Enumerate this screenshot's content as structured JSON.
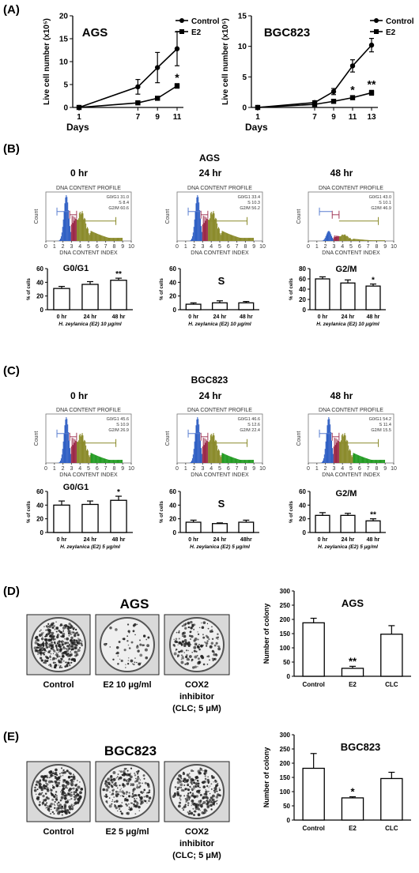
{
  "panels": {
    "A": "(A)",
    "B": "(B)",
    "C": "(C)",
    "D": "(D)",
    "E": "(E)"
  },
  "colors": {
    "g0g1": "#2f5fc4",
    "s": "#9b2948",
    "g2m_olive": "#8a8a2a",
    "g2m_green": "#239b23",
    "bracket_blue": "#5a7fd0",
    "bracket_red": "#a23b5a",
    "bracket_olive": "#8a8a2a"
  },
  "growth": {
    "ylabel": "Live cell number (x10⁵)",
    "xlabel": "Days",
    "legend": [
      "Control",
      "E2"
    ]
  },
  "flow": {
    "section_titles": {
      "B": "AGS",
      "C": "BGC823"
    },
    "times": [
      "0 hr",
      "24 hr",
      "48 hr"
    ],
    "hist_title": "DNA CONTENT PROFILE",
    "hist_xlabel": "DNA CONTENT INDEX",
    "hist_ylabel": "Count",
    "hist_ticks": [
      "0",
      "1",
      "2",
      "3",
      "4",
      "5",
      "6",
      "7",
      "8",
      "9",
      "10"
    ],
    "bar_ylabel": "% of cells",
    "bar_xticks": [
      "0 hr",
      "24 hr",
      "48 hr"
    ],
    "bar_xticks_alt": [
      "0 hr",
      "24 hr",
      "48hr"
    ],
    "B_stats": [
      [
        "G0/G1 31.0",
        "S 8.4",
        "G2/M 60.6"
      ],
      [
        "G0/G1 33.4",
        "S 10.3",
        "G2/M 56.2"
      ],
      [
        "G0/G1 43.0",
        "S 10.1",
        "G2/M 46.9"
      ]
    ],
    "C_stats": [
      [
        "G0/G1 45.6",
        "S 10.9",
        "G2/M 26.9"
      ],
      [
        "G0/G1 46.6",
        "S 12.6",
        "G2/M 22.4"
      ],
      [
        "G0/G1 54.2",
        "S 11.4",
        "G2/M 15.5"
      ]
    ],
    "B_treat": "H. zeylanica (E2) 10 μg/ml",
    "C_treat": "H. zeylanica (E2) 5 μg/ml"
  },
  "colony": {
    "D_title": "AGS",
    "E_title": "BGC823",
    "D_labels": [
      "Control",
      "E2 10 μg/ml",
      "COX2",
      "inhibitor",
      "(CLC; 5 μM)"
    ],
    "E_labels": [
      "Control",
      "E2 5 μg/ml",
      "COX2",
      "inhibitor",
      "(CLC; 5 μM)"
    ],
    "ylabel": "Number of colony"
  },
  "chart_data": [
    {
      "id": "A-AGS",
      "type": "line",
      "title": "AGS",
      "xlabel": "Days",
      "ylabel": "Live cell number (x10⁵)",
      "x": [
        1,
        7,
        9,
        11
      ],
      "ylim": [
        0,
        20
      ],
      "yticks": [
        0,
        5,
        10,
        15,
        20
      ],
      "series": [
        {
          "name": "Control",
          "marker": "circle",
          "values": [
            0,
            4.5,
            8.7,
            12.8
          ],
          "err": [
            0,
            1.6,
            3.3,
            3.7
          ]
        },
        {
          "name": "E2",
          "marker": "square",
          "values": [
            0,
            1.0,
            2.0,
            4.7
          ],
          "err": [
            0,
            0.2,
            0.3,
            0.5
          ]
        }
      ],
      "annotations": [
        {
          "x": 11,
          "series": "E2",
          "text": "*"
        }
      ],
      "legend": "top-right"
    },
    {
      "id": "A-BGC823",
      "type": "line",
      "title": "BGC823",
      "xlabel": "Days",
      "ylabel": "Live cell number (x10⁵)",
      "x": [
        1,
        7,
        9,
        11,
        13
      ],
      "ylim": [
        0,
        15
      ],
      "yticks": [
        0,
        5,
        10,
        15
      ],
      "series": [
        {
          "name": "Control",
          "marker": "circle",
          "values": [
            0,
            0.8,
            2.6,
            6.8,
            10.2
          ],
          "err": [
            0,
            0.3,
            0.5,
            1.0,
            1.1
          ]
        },
        {
          "name": "E2",
          "marker": "square",
          "values": [
            0,
            0.5,
            1.0,
            1.6,
            2.4
          ],
          "err": [
            0,
            0.2,
            0.2,
            0.3,
            0.4
          ]
        }
      ],
      "annotations": [
        {
          "x": 11,
          "series": "E2",
          "text": "*"
        },
        {
          "x": 13,
          "series": "E2",
          "text": "**"
        }
      ],
      "legend": "top-right"
    },
    {
      "id": "B-G0G1",
      "type": "bar",
      "label": "G0/G1",
      "categories": [
        "0 hr",
        "24 hr",
        "48 hr"
      ],
      "values": [
        31,
        37,
        43
      ],
      "err": [
        3,
        4,
        3
      ],
      "ylim": [
        0,
        60
      ],
      "yticks": [
        0,
        20,
        40,
        60
      ],
      "stars": [
        "",
        "",
        "**"
      ]
    },
    {
      "id": "B-S",
      "type": "bar",
      "label": "S",
      "categories": [
        "0 hr",
        "24 hr",
        "48 hr"
      ],
      "values": [
        8,
        10,
        10
      ],
      "err": [
        2,
        3,
        2
      ],
      "ylim": [
        0,
        60
      ],
      "yticks": [
        0,
        20,
        40,
        60
      ],
      "stars": [
        "",
        "",
        ""
      ]
    },
    {
      "id": "B-G2M",
      "type": "bar",
      "label": "G2/M",
      "categories": [
        "0 hr",
        "24 hr",
        "48 hr"
      ],
      "values": [
        60,
        52,
        46
      ],
      "err": [
        4,
        6,
        4
      ],
      "ylim": [
        0,
        80
      ],
      "yticks": [
        0,
        20,
        40,
        60,
        80
      ],
      "stars": [
        "",
        "",
        "*"
      ]
    },
    {
      "id": "C-G0G1",
      "type": "bar",
      "label": "G0/G1",
      "categories": [
        "0 hr",
        "24 hr",
        "48 hr"
      ],
      "values": [
        40,
        41,
        47
      ],
      "err": [
        6,
        5,
        6
      ],
      "ylim": [
        0,
        60
      ],
      "yticks": [
        0,
        20,
        40,
        60
      ],
      "stars": [
        "",
        "",
        "*"
      ]
    },
    {
      "id": "C-S",
      "type": "bar",
      "label": "S",
      "categories": [
        "0 hr",
        "24 hr",
        "48hr"
      ],
      "values": [
        15,
        13,
        15
      ],
      "err": [
        3,
        1,
        3
      ],
      "ylim": [
        0,
        60
      ],
      "yticks": [
        0,
        20,
        40,
        60
      ],
      "stars": [
        "",
        "",
        ""
      ]
    },
    {
      "id": "C-G2M",
      "type": "bar",
      "label": "G2/M",
      "categories": [
        "0 hr",
        "24 hr",
        "48 hr"
      ],
      "values": [
        25,
        25,
        17
      ],
      "err": [
        4,
        3,
        3
      ],
      "ylim": [
        0,
        60
      ],
      "yticks": [
        0,
        20,
        40,
        60
      ],
      "stars": [
        "",
        "",
        "**"
      ]
    },
    {
      "id": "D-colony",
      "type": "bar",
      "title": "AGS",
      "ylabel": "Number of colony",
      "categories": [
        "Control",
        "E2",
        "CLC"
      ],
      "values": [
        188,
        28,
        148
      ],
      "err": [
        16,
        7,
        30
      ],
      "ylim": [
        0,
        300
      ],
      "yticks": [
        0,
        50,
        100,
        150,
        200,
        250,
        300
      ],
      "stars": [
        "",
        "**",
        ""
      ]
    },
    {
      "id": "E-colony",
      "type": "bar",
      "title": "BGC823",
      "ylabel": "Number of colony",
      "categories": [
        "Control",
        "E2",
        "CLC"
      ],
      "values": [
        182,
        78,
        146
      ],
      "err": [
        52,
        4,
        22
      ],
      "ylim": [
        0,
        300
      ],
      "yticks": [
        0,
        50,
        100,
        150,
        200,
        250,
        300
      ],
      "stars": [
        "",
        "*",
        ""
      ]
    }
  ]
}
